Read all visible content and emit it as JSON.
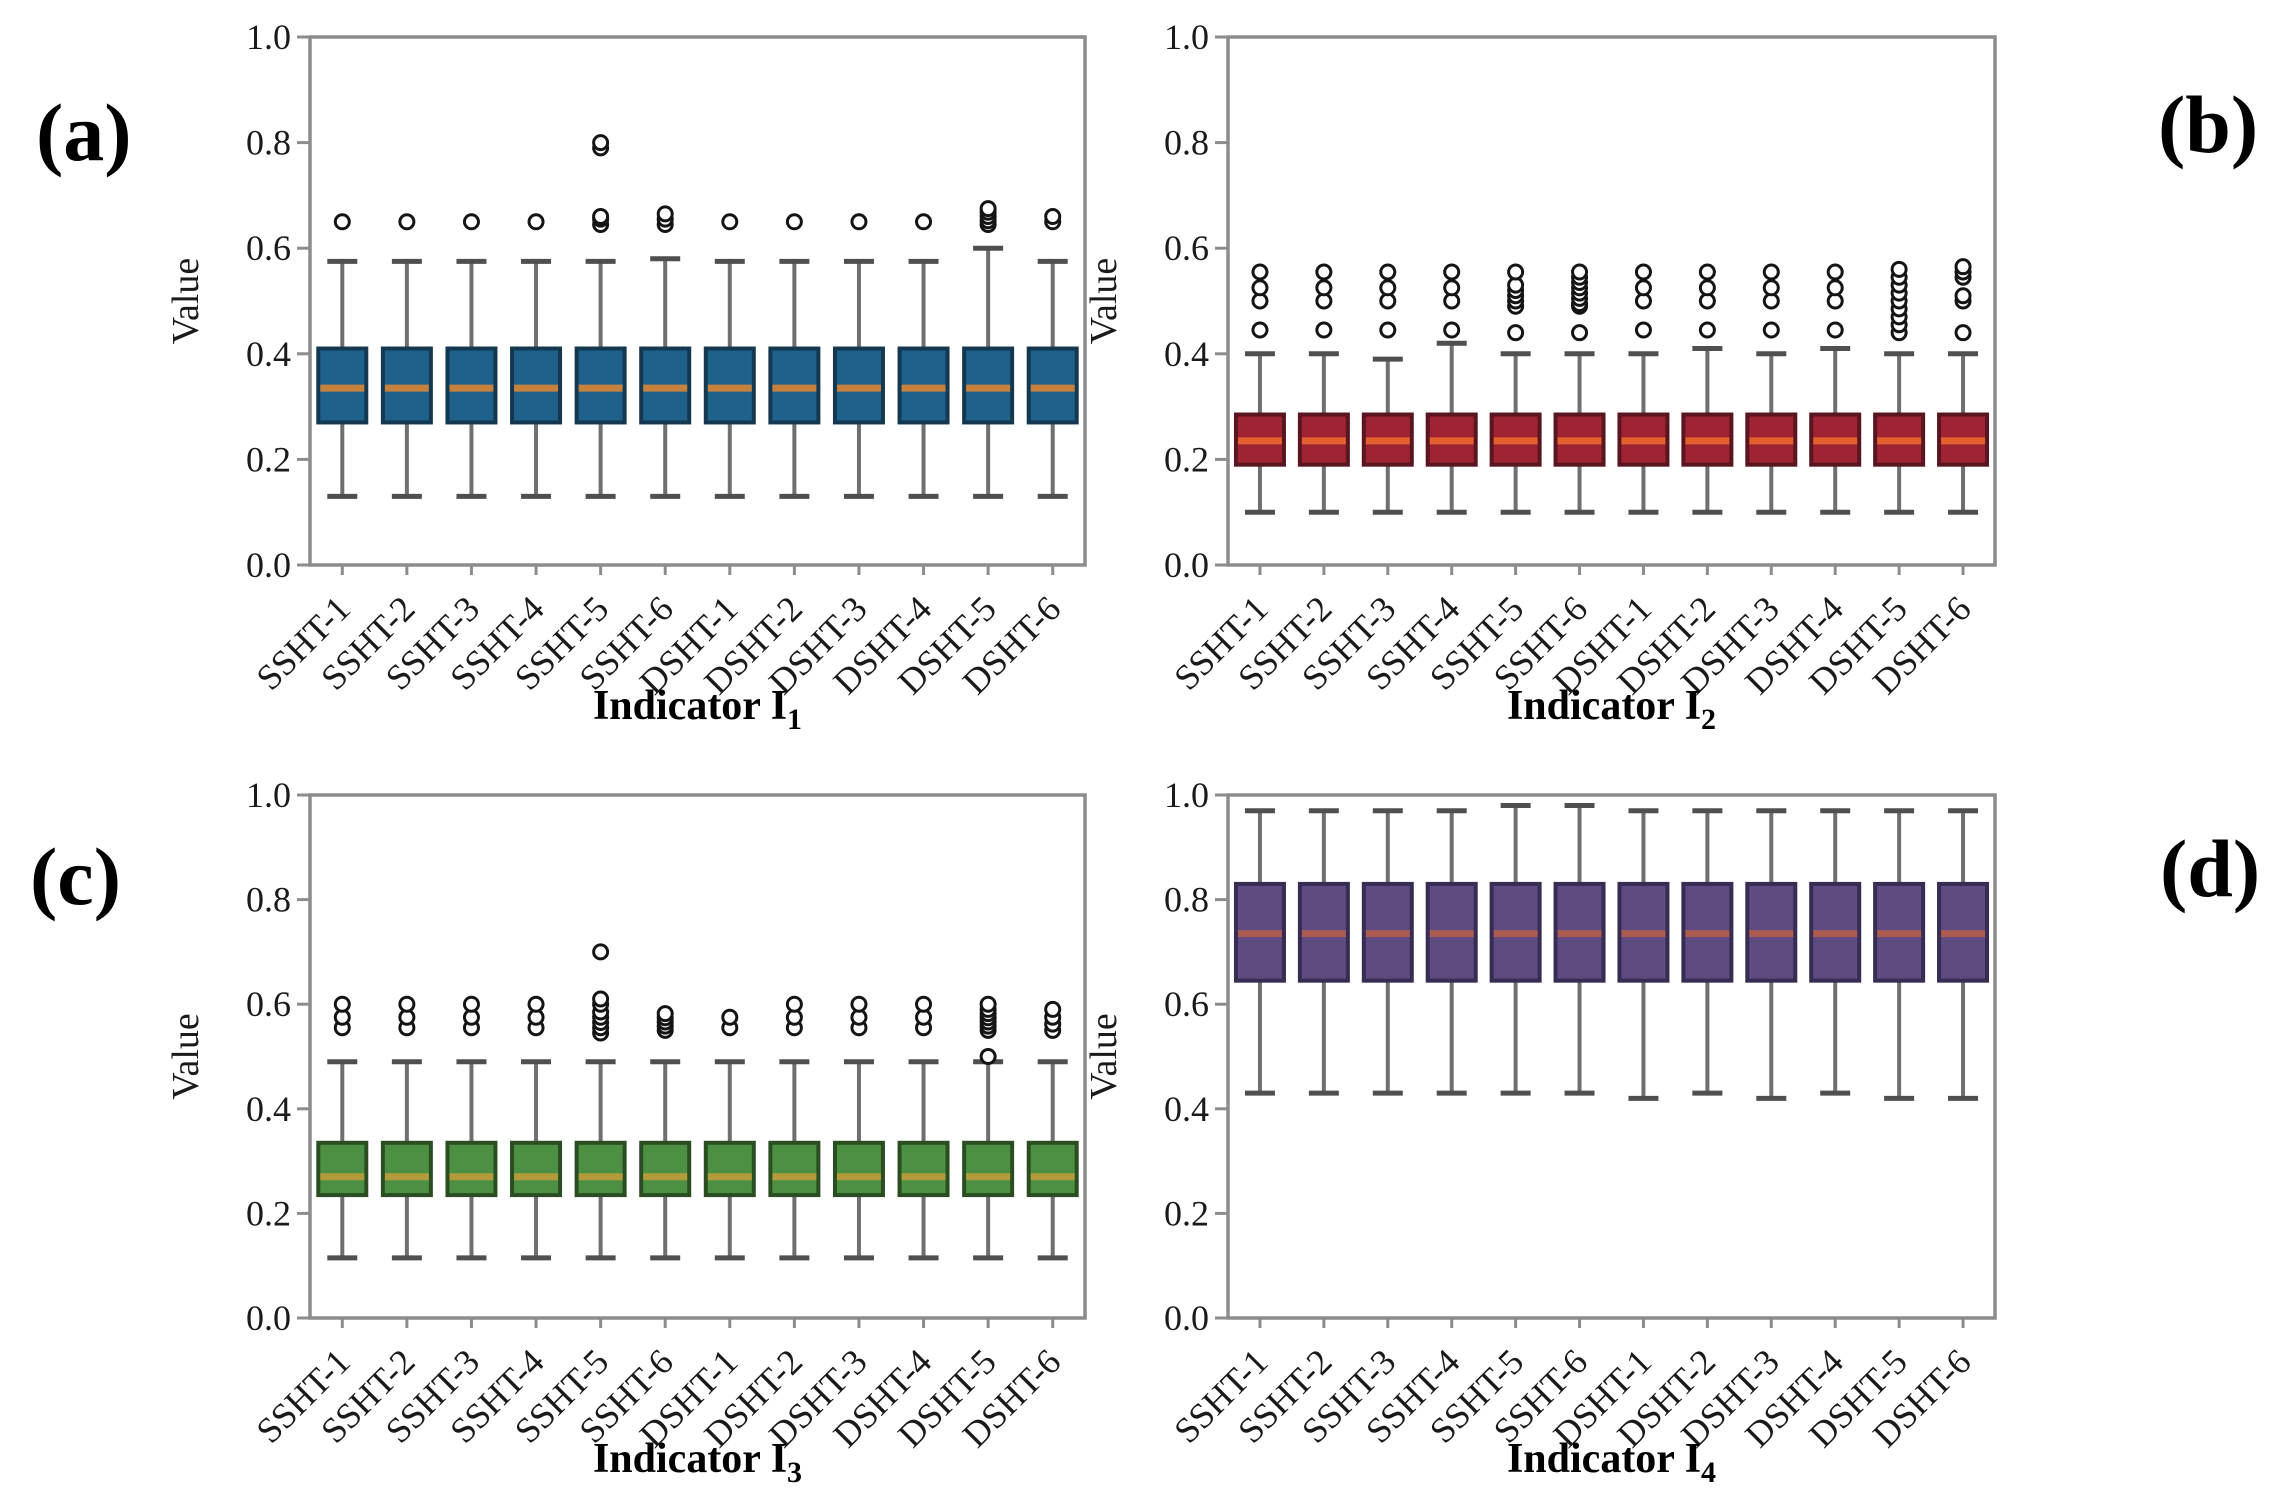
{
  "figure": {
    "panel_labels": [
      "(a)",
      "(b)",
      "(c)",
      "(d)"
    ],
    "ylabel": "Value",
    "yticks": [
      "0.0",
      "0.2",
      "0.4",
      "0.6",
      "0.8",
      "1.0"
    ],
    "ylim": [
      0.0,
      1.0
    ],
    "categories": [
      "SSHT-1",
      "SSHT-2",
      "SSHT-3",
      "SSHT-4",
      "SSHT-5",
      "SSHT-6",
      "DSHT-1",
      "DSHT-2",
      "DSHT-3",
      "DSHT-4",
      "DSHT-5",
      "DSHT-6"
    ],
    "style": {
      "frame": "#8c8c8c",
      "whisker": "#6f6f6f",
      "cap": "#4f4f4f",
      "flier": "#141414",
      "text": "#1a1a1a"
    }
  },
  "chart_data": [
    {
      "type": "box",
      "panel": "a",
      "xlabel": "Indicator I",
      "xlabel_sub": "1",
      "ylabel": "Value",
      "colors": {
        "box": "#20618c",
        "edge": "#13384f",
        "median": "#c5823f"
      },
      "boxes": [
        {
          "lo": 0.13,
          "q1": 0.27,
          "med": 0.335,
          "q3": 0.41,
          "hi": 0.575,
          "out": [
            0.65
          ]
        },
        {
          "lo": 0.13,
          "q1": 0.27,
          "med": 0.335,
          "q3": 0.41,
          "hi": 0.575,
          "out": [
            0.65
          ]
        },
        {
          "lo": 0.13,
          "q1": 0.27,
          "med": 0.335,
          "q3": 0.41,
          "hi": 0.575,
          "out": [
            0.65
          ]
        },
        {
          "lo": 0.13,
          "q1": 0.27,
          "med": 0.335,
          "q3": 0.41,
          "hi": 0.575,
          "out": [
            0.65
          ]
        },
        {
          "lo": 0.13,
          "q1": 0.27,
          "med": 0.335,
          "q3": 0.41,
          "hi": 0.575,
          "out": [
            0.645,
            0.655,
            0.66,
            0.79,
            0.8
          ]
        },
        {
          "lo": 0.13,
          "q1": 0.27,
          "med": 0.335,
          "q3": 0.41,
          "hi": 0.58,
          "out": [
            0.645,
            0.655,
            0.665
          ]
        },
        {
          "lo": 0.13,
          "q1": 0.27,
          "med": 0.335,
          "q3": 0.41,
          "hi": 0.575,
          "out": [
            0.65
          ]
        },
        {
          "lo": 0.13,
          "q1": 0.27,
          "med": 0.335,
          "q3": 0.41,
          "hi": 0.575,
          "out": [
            0.65
          ]
        },
        {
          "lo": 0.13,
          "q1": 0.27,
          "med": 0.335,
          "q3": 0.41,
          "hi": 0.575,
          "out": [
            0.65
          ]
        },
        {
          "lo": 0.13,
          "q1": 0.27,
          "med": 0.335,
          "q3": 0.41,
          "hi": 0.575,
          "out": [
            0.65
          ]
        },
        {
          "lo": 0.13,
          "q1": 0.27,
          "med": 0.335,
          "q3": 0.41,
          "hi": 0.6,
          "out": [
            0.645,
            0.652,
            0.66,
            0.668,
            0.675
          ]
        },
        {
          "lo": 0.13,
          "q1": 0.27,
          "med": 0.335,
          "q3": 0.41,
          "hi": 0.575,
          "out": [
            0.65,
            0.66
          ]
        }
      ]
    },
    {
      "type": "box",
      "panel": "b",
      "xlabel": "Indicator I",
      "xlabel_sub": "2",
      "ylabel": "Value",
      "colors": {
        "box": "#9e2433",
        "edge": "#5a1620",
        "median": "#e2612c"
      },
      "boxes": [
        {
          "lo": 0.1,
          "q1": 0.19,
          "med": 0.235,
          "q3": 0.285,
          "hi": 0.4,
          "out": [
            0.445,
            0.5,
            0.525,
            0.555
          ]
        },
        {
          "lo": 0.1,
          "q1": 0.19,
          "med": 0.235,
          "q3": 0.285,
          "hi": 0.4,
          "out": [
            0.445,
            0.5,
            0.525,
            0.555
          ]
        },
        {
          "lo": 0.1,
          "q1": 0.19,
          "med": 0.235,
          "q3": 0.285,
          "hi": 0.39,
          "out": [
            0.445,
            0.5,
            0.525,
            0.555
          ]
        },
        {
          "lo": 0.1,
          "q1": 0.19,
          "med": 0.235,
          "q3": 0.285,
          "hi": 0.42,
          "out": [
            0.445,
            0.5,
            0.525,
            0.555
          ]
        },
        {
          "lo": 0.1,
          "q1": 0.19,
          "med": 0.235,
          "q3": 0.285,
          "hi": 0.4,
          "out": [
            0.44,
            0.49,
            0.5,
            0.51,
            0.52,
            0.53,
            0.555
          ]
        },
        {
          "lo": 0.1,
          "q1": 0.19,
          "med": 0.235,
          "q3": 0.285,
          "hi": 0.4,
          "out": [
            0.44,
            0.49,
            0.495,
            0.505,
            0.515,
            0.525,
            0.535,
            0.545,
            0.555
          ]
        },
        {
          "lo": 0.1,
          "q1": 0.19,
          "med": 0.235,
          "q3": 0.285,
          "hi": 0.4,
          "out": [
            0.445,
            0.5,
            0.525,
            0.555
          ]
        },
        {
          "lo": 0.1,
          "q1": 0.19,
          "med": 0.235,
          "q3": 0.285,
          "hi": 0.41,
          "out": [
            0.445,
            0.5,
            0.525,
            0.555
          ]
        },
        {
          "lo": 0.1,
          "q1": 0.19,
          "med": 0.235,
          "q3": 0.285,
          "hi": 0.4,
          "out": [
            0.445,
            0.5,
            0.525,
            0.555
          ]
        },
        {
          "lo": 0.1,
          "q1": 0.19,
          "med": 0.235,
          "q3": 0.285,
          "hi": 0.41,
          "out": [
            0.445,
            0.5,
            0.525,
            0.555
          ]
        },
        {
          "lo": 0.1,
          "q1": 0.19,
          "med": 0.235,
          "q3": 0.285,
          "hi": 0.4,
          "out": [
            0.44,
            0.455,
            0.47,
            0.485,
            0.5,
            0.515,
            0.53,
            0.545,
            0.56
          ]
        },
        {
          "lo": 0.1,
          "q1": 0.19,
          "med": 0.235,
          "q3": 0.285,
          "hi": 0.4,
          "out": [
            0.44,
            0.5,
            0.51,
            0.545,
            0.555,
            0.565
          ]
        }
      ]
    },
    {
      "type": "box",
      "panel": "c",
      "xlabel": "Indicator I",
      "xlabel_sub": "3",
      "ylabel": "Value",
      "colors": {
        "box": "#4e9043",
        "edge": "#2a4e22",
        "median": "#b19b3a"
      },
      "boxes": [
        {
          "lo": 0.115,
          "q1": 0.235,
          "med": 0.27,
          "q3": 0.335,
          "hi": 0.49,
          "out": [
            0.555,
            0.575,
            0.6
          ]
        },
        {
          "lo": 0.115,
          "q1": 0.235,
          "med": 0.27,
          "q3": 0.335,
          "hi": 0.49,
          "out": [
            0.555,
            0.575,
            0.6
          ]
        },
        {
          "lo": 0.115,
          "q1": 0.235,
          "med": 0.27,
          "q3": 0.335,
          "hi": 0.49,
          "out": [
            0.555,
            0.575,
            0.6
          ]
        },
        {
          "lo": 0.115,
          "q1": 0.235,
          "med": 0.27,
          "q3": 0.335,
          "hi": 0.49,
          "out": [
            0.555,
            0.575,
            0.6
          ]
        },
        {
          "lo": 0.115,
          "q1": 0.235,
          "med": 0.27,
          "q3": 0.335,
          "hi": 0.49,
          "out": [
            0.545,
            0.555,
            0.565,
            0.575,
            0.585,
            0.6,
            0.61,
            0.7
          ]
        },
        {
          "lo": 0.115,
          "q1": 0.235,
          "med": 0.27,
          "q3": 0.335,
          "hi": 0.49,
          "out": [
            0.55,
            0.558,
            0.566,
            0.574,
            0.582
          ]
        },
        {
          "lo": 0.115,
          "q1": 0.235,
          "med": 0.27,
          "q3": 0.335,
          "hi": 0.49,
          "out": [
            0.555,
            0.575
          ]
        },
        {
          "lo": 0.115,
          "q1": 0.235,
          "med": 0.27,
          "q3": 0.335,
          "hi": 0.49,
          "out": [
            0.555,
            0.575,
            0.6
          ]
        },
        {
          "lo": 0.115,
          "q1": 0.235,
          "med": 0.27,
          "q3": 0.335,
          "hi": 0.49,
          "out": [
            0.555,
            0.575,
            0.6
          ]
        },
        {
          "lo": 0.115,
          "q1": 0.235,
          "med": 0.27,
          "q3": 0.335,
          "hi": 0.49,
          "out": [
            0.555,
            0.575,
            0.6
          ]
        },
        {
          "lo": 0.115,
          "q1": 0.235,
          "med": 0.27,
          "q3": 0.335,
          "hi": 0.49,
          "out": [
            0.5,
            0.55,
            0.558,
            0.566,
            0.574,
            0.582,
            0.59,
            0.6
          ]
        },
        {
          "lo": 0.115,
          "q1": 0.235,
          "med": 0.27,
          "q3": 0.335,
          "hi": 0.49,
          "out": [
            0.55,
            0.562,
            0.575,
            0.59
          ]
        }
      ]
    },
    {
      "type": "box",
      "panel": "d",
      "xlabel": "Indicator I",
      "xlabel_sub": "4",
      "ylabel": "Value",
      "colors": {
        "box": "#5d4b81",
        "edge": "#372c52",
        "median": "#ad5a50"
      },
      "boxes": [
        {
          "lo": 0.43,
          "q1": 0.645,
          "med": 0.735,
          "q3": 0.83,
          "hi": 0.97,
          "out": []
        },
        {
          "lo": 0.43,
          "q1": 0.645,
          "med": 0.735,
          "q3": 0.83,
          "hi": 0.97,
          "out": []
        },
        {
          "lo": 0.43,
          "q1": 0.645,
          "med": 0.735,
          "q3": 0.83,
          "hi": 0.97,
          "out": []
        },
        {
          "lo": 0.43,
          "q1": 0.645,
          "med": 0.735,
          "q3": 0.83,
          "hi": 0.97,
          "out": []
        },
        {
          "lo": 0.43,
          "q1": 0.645,
          "med": 0.735,
          "q3": 0.83,
          "hi": 0.98,
          "out": []
        },
        {
          "lo": 0.43,
          "q1": 0.645,
          "med": 0.735,
          "q3": 0.83,
          "hi": 0.98,
          "out": []
        },
        {
          "lo": 0.42,
          "q1": 0.645,
          "med": 0.735,
          "q3": 0.83,
          "hi": 0.97,
          "out": []
        },
        {
          "lo": 0.43,
          "q1": 0.645,
          "med": 0.735,
          "q3": 0.83,
          "hi": 0.97,
          "out": []
        },
        {
          "lo": 0.42,
          "q1": 0.645,
          "med": 0.735,
          "q3": 0.83,
          "hi": 0.97,
          "out": []
        },
        {
          "lo": 0.43,
          "q1": 0.645,
          "med": 0.735,
          "q3": 0.83,
          "hi": 0.97,
          "out": []
        },
        {
          "lo": 0.42,
          "q1": 0.645,
          "med": 0.735,
          "q3": 0.83,
          "hi": 0.97,
          "out": []
        },
        {
          "lo": 0.42,
          "q1": 0.645,
          "med": 0.735,
          "q3": 0.83,
          "hi": 0.97,
          "out": []
        }
      ]
    }
  ]
}
